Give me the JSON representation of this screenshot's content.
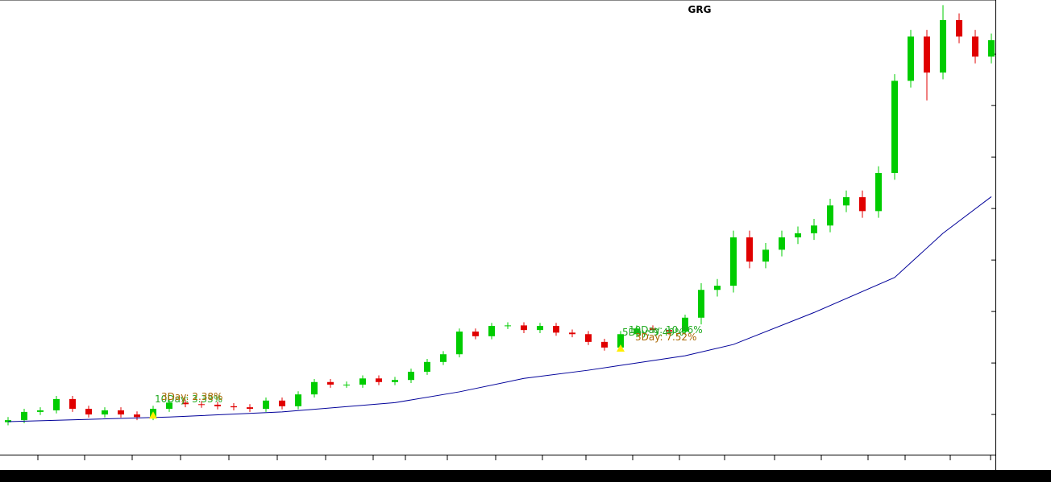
{
  "chart_data": {
    "type": "candlestick",
    "title": "GRG",
    "open": [
      0.85,
      0.89,
      1.05,
      1.08,
      1.3,
      1.11,
      1.0,
      1.08,
      1.0,
      0.95,
      1.11,
      1.23,
      1.2,
      1.19,
      1.16,
      1.14,
      1.11,
      1.27,
      1.16,
      1.39,
      1.63,
      1.58,
      1.58,
      1.7,
      1.63,
      1.67,
      1.83,
      2.02,
      2.17,
      2.61,
      2.52,
      2.72,
      2.73,
      2.64,
      2.72,
      2.59,
      2.56,
      2.41,
      2.3,
      2.56,
      2.67,
      2.64,
      2.61,
      2.88,
      3.42,
      3.5,
      4.44,
      3.97,
      4.2,
      4.44,
      4.52,
      4.67,
      5.06,
      5.22,
      4.95,
      5.69,
      7.48,
      8.34,
      7.64,
      8.66,
      8.34,
      7.95
    ],
    "high": [
      0.95,
      1.11,
      1.14,
      1.36,
      1.36,
      1.17,
      1.14,
      1.14,
      1.06,
      1.17,
      1.29,
      1.29,
      1.26,
      1.25,
      1.22,
      1.2,
      1.33,
      1.33,
      1.45,
      1.69,
      1.69,
      1.64,
      1.76,
      1.76,
      1.73,
      1.89,
      2.08,
      2.23,
      2.67,
      2.67,
      2.78,
      2.79,
      2.79,
      2.78,
      2.78,
      2.65,
      2.62,
      2.47,
      2.62,
      2.73,
      2.73,
      2.7,
      2.94,
      3.55,
      3.63,
      4.57,
      4.57,
      4.33,
      4.57,
      4.65,
      4.8,
      5.19,
      5.35,
      5.35,
      5.82,
      7.61,
      8.47,
      8.47,
      8.95,
      8.79,
      8.47,
      8.4
    ],
    "low": [
      0.79,
      0.83,
      0.99,
      1.02,
      1.05,
      0.94,
      0.94,
      0.94,
      0.89,
      0.89,
      1.05,
      1.14,
      1.13,
      1.1,
      1.08,
      1.05,
      1.05,
      1.1,
      1.1,
      1.33,
      1.52,
      1.52,
      1.52,
      1.57,
      1.57,
      1.61,
      1.77,
      1.96,
      2.11,
      2.46,
      2.46,
      2.66,
      2.58,
      2.58,
      2.53,
      2.5,
      2.35,
      2.24,
      2.24,
      2.5,
      2.58,
      2.55,
      2.55,
      2.75,
      3.29,
      3.37,
      3.84,
      3.84,
      4.07,
      4.31,
      4.39,
      4.54,
      4.93,
      4.82,
      4.82,
      5.56,
      7.35,
      7.1,
      7.51,
      8.21,
      7.82,
      7.82
    ],
    "close": [
      0.89,
      1.05,
      1.08,
      1.3,
      1.11,
      1.0,
      1.08,
      1.0,
      0.95,
      1.11,
      1.23,
      1.2,
      1.19,
      1.16,
      1.14,
      1.11,
      1.27,
      1.16,
      1.39,
      1.63,
      1.58,
      1.58,
      1.7,
      1.63,
      1.67,
      1.83,
      2.02,
      2.17,
      2.61,
      2.52,
      2.72,
      2.73,
      2.64,
      2.72,
      2.59,
      2.56,
      2.41,
      2.3,
      2.56,
      2.67,
      2.64,
      2.61,
      2.88,
      3.42,
      3.5,
      4.44,
      3.97,
      4.2,
      4.44,
      4.52,
      4.67,
      5.06,
      5.22,
      4.95,
      5.69,
      7.48,
      8.34,
      7.64,
      8.66,
      8.34,
      7.95,
      8.27
    ],
    "up_color": "#00cc00",
    "down_color": "#e00000",
    "moving_average": {
      "color": "#000099",
      "x": [
        0,
        10,
        17,
        24,
        28,
        32,
        36,
        42,
        45,
        50,
        55,
        58,
        61
      ],
      "values": [
        0.86,
        0.95,
        1.05,
        1.23,
        1.44,
        1.7,
        1.86,
        2.14,
        2.36,
        2.98,
        3.66,
        4.52,
        5.23
      ]
    },
    "signals": [
      {
        "x": 9,
        "price": 0.92,
        "color": "#ffee00",
        "labels": [
          {
            "text": "10Day: 3.33%",
            "color": "#22aa22"
          },
          {
            "text": "3Day: 2.38%",
            "color": "#aa6600"
          }
        ]
      },
      {
        "x": 38,
        "price": 2.22,
        "color": "#ffee00",
        "labels": [
          {
            "text": "5Day: 9.49%",
            "color": "#22aa22"
          },
          {
            "text": "10Day: 10.86%",
            "color": "#22aa22"
          },
          {
            "text": "3Day: 7.52%",
            "color": "#aa6600"
          }
        ]
      }
    ],
    "xlim": [
      -0.5,
      61.2
    ],
    "xticks": [
      1.85,
      4.75,
      7.7,
      10.7,
      13.7,
      16.7,
      19.7,
      22.65,
      24.65,
      27.25,
      30.25,
      33.15,
      35.85,
      38.75,
      41.65,
      44.45,
      47.55,
      50.45,
      53.35,
      55.65,
      58.45,
      60.95
    ],
    "ylim": [
      0.22,
      9.05
    ],
    "yticks": [
      1,
      2,
      3,
      4,
      5,
      6,
      7,
      8
    ]
  }
}
